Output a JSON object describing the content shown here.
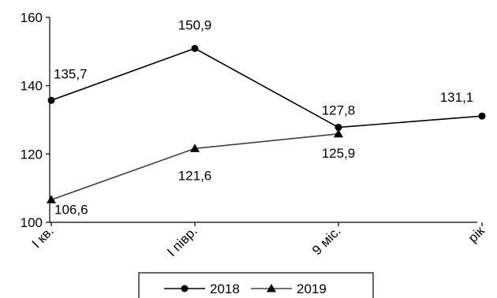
{
  "chart_data": {
    "type": "line",
    "categories": [
      "І кв.",
      "І півр.",
      "9 міс.",
      "рік"
    ],
    "ylim": [
      100,
      160
    ],
    "yticks": [
      100,
      120,
      140,
      160
    ],
    "series": [
      {
        "name": "2018",
        "values": [
          135.7,
          150.9,
          127.8,
          131.1
        ],
        "labels": [
          "135,7",
          "150,9",
          "127,8",
          "131,1"
        ],
        "marker": "circle",
        "color": "#000000"
      },
      {
        "name": "2019",
        "values": [
          106.6,
          121.6,
          125.9,
          null
        ],
        "labels": [
          "106,6",
          "121,6",
          "125,9",
          null
        ],
        "marker": "triangle",
        "color": "#000000"
      }
    ],
    "grid": false,
    "legend": "bottom"
  }
}
